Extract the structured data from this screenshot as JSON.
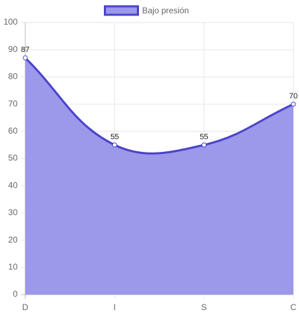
{
  "chart_data": {
    "type": "area",
    "categories": [
      "D",
      "I",
      "S",
      "C"
    ],
    "series": [
      {
        "name": "Bajo presión",
        "color": "#4b44c9",
        "fill_color": "#9c98ea",
        "values": [
          87,
          55,
          55,
          70
        ]
      }
    ],
    "ylim": [
      0,
      100
    ],
    "yticks": [
      0,
      10,
      20,
      30,
      40,
      50,
      60,
      70,
      80,
      90,
      100
    ],
    "grid": true,
    "legend": "top",
    "data_labels": true
  }
}
